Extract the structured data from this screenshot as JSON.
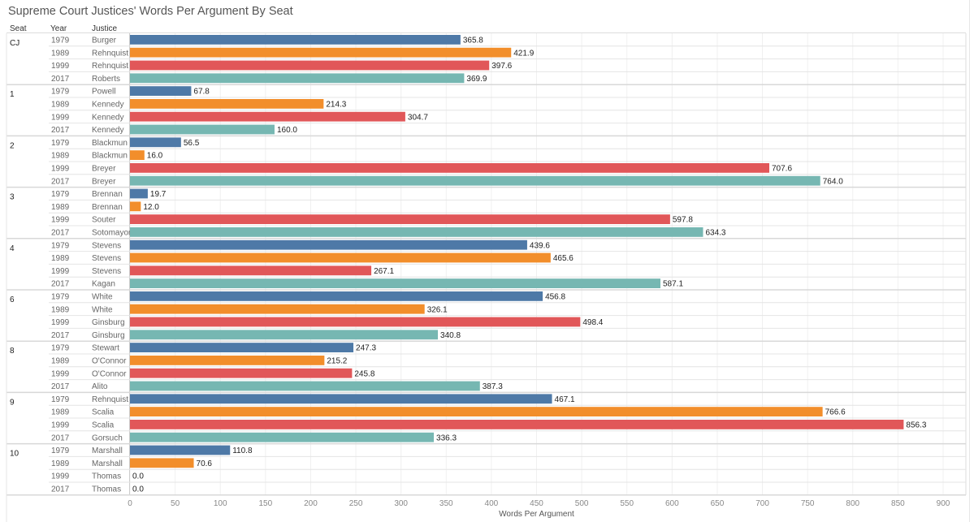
{
  "chart_data": {
    "type": "bar",
    "orientation": "horizontal",
    "title": "Supreme Court Justices' Words Per Argument By Seat",
    "column_headers": {
      "seat": "Seat",
      "year": "Year",
      "justice": "Justice"
    },
    "xlabel": "Words Per Argument",
    "xlim": [
      0,
      900
    ],
    "xticks": [
      0,
      50,
      100,
      150,
      200,
      250,
      300,
      350,
      400,
      450,
      500,
      550,
      600,
      650,
      700,
      750,
      800,
      850,
      900
    ],
    "grid": true,
    "legend": "none",
    "colors_by_year": {
      "1979": "#4e79a7",
      "1989": "#f28e2b",
      "1999": "#e15759",
      "2017": "#76b7b2"
    },
    "groups": [
      {
        "seat": "CJ",
        "rows": [
          {
            "year": "1979",
            "justice": "Burger",
            "value": 365.8
          },
          {
            "year": "1989",
            "justice": "Rehnquist",
            "value": 421.9
          },
          {
            "year": "1999",
            "justice": "Rehnquist",
            "value": 397.6
          },
          {
            "year": "2017",
            "justice": "Roberts",
            "value": 369.9
          }
        ]
      },
      {
        "seat": "1",
        "rows": [
          {
            "year": "1979",
            "justice": "Powell",
            "value": 67.8
          },
          {
            "year": "1989",
            "justice": "Kennedy",
            "value": 214.3
          },
          {
            "year": "1999",
            "justice": "Kennedy",
            "value": 304.7
          },
          {
            "year": "2017",
            "justice": "Kennedy",
            "value": 160.0
          }
        ]
      },
      {
        "seat": "2",
        "rows": [
          {
            "year": "1979",
            "justice": "Blackmun",
            "value": 56.5
          },
          {
            "year": "1989",
            "justice": "Blackmun",
            "value": 16.0
          },
          {
            "year": "1999",
            "justice": "Breyer",
            "value": 707.6
          },
          {
            "year": "2017",
            "justice": "Breyer",
            "value": 764.0
          }
        ]
      },
      {
        "seat": "3",
        "rows": [
          {
            "year": "1979",
            "justice": "Brennan",
            "value": 19.7
          },
          {
            "year": "1989",
            "justice": "Brennan",
            "value": 12.0
          },
          {
            "year": "1999",
            "justice": "Souter",
            "value": 597.8
          },
          {
            "year": "2017",
            "justice": "Sotomayor",
            "value": 634.3
          }
        ]
      },
      {
        "seat": "4",
        "rows": [
          {
            "year": "1979",
            "justice": "Stevens",
            "value": 439.6
          },
          {
            "year": "1989",
            "justice": "Stevens",
            "value": 465.6
          },
          {
            "year": "1999",
            "justice": "Stevens",
            "value": 267.1
          },
          {
            "year": "2017",
            "justice": "Kagan",
            "value": 587.1
          }
        ]
      },
      {
        "seat": "6",
        "rows": [
          {
            "year": "1979",
            "justice": "White",
            "value": 456.8
          },
          {
            "year": "1989",
            "justice": "White",
            "value": 326.1
          },
          {
            "year": "1999",
            "justice": "Ginsburg",
            "value": 498.4
          },
          {
            "year": "2017",
            "justice": "Ginsburg",
            "value": 340.8
          }
        ]
      },
      {
        "seat": "8",
        "rows": [
          {
            "year": "1979",
            "justice": "Stewart",
            "value": 247.3
          },
          {
            "year": "1989",
            "justice": "O'Connor",
            "value": 215.2
          },
          {
            "year": "1999",
            "justice": "O'Connor",
            "value": 245.8
          },
          {
            "year": "2017",
            "justice": "Alito",
            "value": 387.3
          }
        ]
      },
      {
        "seat": "9",
        "rows": [
          {
            "year": "1979",
            "justice": "Rehnquist",
            "value": 467.1
          },
          {
            "year": "1989",
            "justice": "Scalia",
            "value": 766.6
          },
          {
            "year": "1999",
            "justice": "Scalia",
            "value": 856.3
          },
          {
            "year": "2017",
            "justice": "Gorsuch",
            "value": 336.3
          }
        ]
      },
      {
        "seat": "10",
        "rows": [
          {
            "year": "1979",
            "justice": "Marshall",
            "value": 110.8
          },
          {
            "year": "1989",
            "justice": "Marshall",
            "value": 70.6
          },
          {
            "year": "1999",
            "justice": "Thomas",
            "value": 0.0
          },
          {
            "year": "2017",
            "justice": "Thomas",
            "value": 0.0
          }
        ]
      }
    ]
  }
}
